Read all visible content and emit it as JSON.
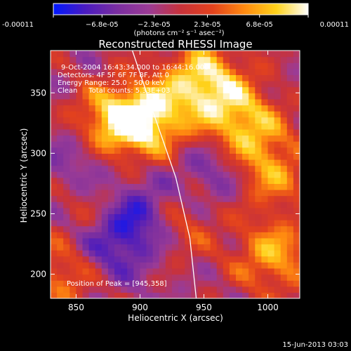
{
  "chart_data": {
    "type": "heatmap",
    "title": "Reconstructed RHESSI Image",
    "xlabel": "Heliocentric X (arcsec)",
    "ylabel": "Heliocentric Y (arcsec)",
    "xlim": [
      830,
      1025
    ],
    "ylim": [
      180,
      385
    ],
    "x_ticks": [
      850,
      900,
      950,
      1000
    ],
    "y_ticks": [
      200,
      250,
      300,
      350
    ],
    "x_tick_labels": [
      "850",
      "900",
      "950",
      "1000"
    ],
    "y_tick_labels": [
      "200",
      "250",
      "300",
      "350"
    ],
    "colorbar": {
      "min": -0.00011,
      "max": 0.00011,
      "tick_values": [
        -0.00011,
        -6.8e-05,
        -2.3e-05,
        2.3e-05,
        6.8e-05,
        0.00011
      ],
      "tick_labels": [
        "-0.00011",
        "−6.8e-05",
        "−2.3e-05",
        "2.3e-05",
        "6.8e-05",
        "0.00011"
      ],
      "units_label": "(photons cm⁻² s⁻¹ asec⁻²)",
      "colors": [
        "#0018ff",
        "#4a1bbf",
        "#7a2ea0",
        "#9b3b95",
        "#c8323a",
        "#e3421d",
        "#ff8a10",
        "#ffd21a",
        "#ffffff"
      ]
    },
    "annotations": [
      "9-Oct-2004 16:43:34.000 to 16:44:16.000",
      "Detectors: 4F 5F 6F 7F 8F, Att 0",
      "Energy Range: 25.0 - 50.0 keV",
      "Clean     Total counts: 5.33E+03"
    ],
    "peak_text": "Position of Peak = [945,358]",
    "limb_curve": [
      [
        894,
        385
      ],
      [
        910,
        335
      ],
      [
        928,
        280
      ],
      [
        939,
        230
      ],
      [
        944,
        180
      ]
    ],
    "hot_regions": [
      {
        "x": 875,
        "y": 322,
        "intensity": 0.95
      },
      {
        "x": 905,
        "y": 328,
        "intensity": 1.0
      },
      {
        "x": 950,
        "y": 360,
        "intensity": 1.0
      },
      {
        "x": 980,
        "y": 325,
        "intensity": 0.85
      },
      {
        "x": 1000,
        "y": 285,
        "intensity": 0.7
      },
      {
        "x": 1005,
        "y": 215,
        "intensity": 0.75
      },
      {
        "x": 840,
        "y": 200,
        "intensity": 0.6
      },
      {
        "x": 930,
        "y": 245,
        "intensity": 0.55
      },
      {
        "x": 870,
        "y": 255,
        "intensity": 0.5
      }
    ],
    "cold_regions": [
      {
        "x": 900,
        "y": 250,
        "intensity": -0.8
      },
      {
        "x": 875,
        "y": 225,
        "intensity": -0.6
      },
      {
        "x": 960,
        "y": 285,
        "intensity": -0.5
      },
      {
        "x": 860,
        "y": 300,
        "intensity": -0.55
      }
    ]
  },
  "footer_date": "15-Jun-2013 03:03"
}
